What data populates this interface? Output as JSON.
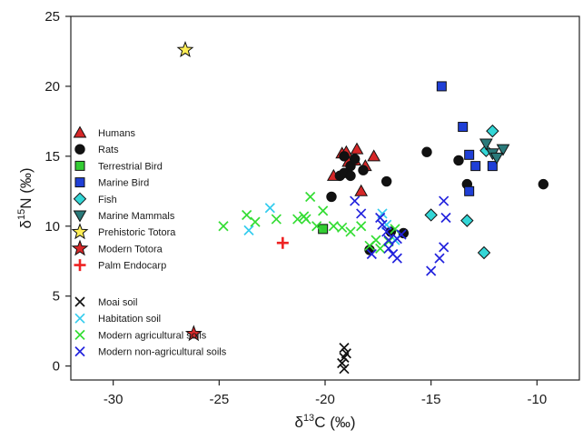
{
  "chart_data": {
    "type": "scatter",
    "xlabel": {
      "main": "δ",
      "sup": "13",
      "rest": "C (‰)"
    },
    "ylabel": {
      "main": "δ",
      "sup": "15",
      "rest": "N (‰)"
    },
    "xlim": [
      -32,
      -8
    ],
    "ylim": [
      -1,
      25
    ],
    "xticks": [
      -30,
      -25,
      -20,
      -15,
      -10
    ],
    "yticks": [
      0,
      5,
      10,
      15,
      20,
      25
    ],
    "xtick_labels": [
      "-30",
      "-25",
      "-20",
      "-15",
      "-10"
    ],
    "ytick_labels": [
      "0",
      "5",
      "10",
      "15",
      "20",
      "25"
    ],
    "grid": false,
    "legend_position": "left",
    "series": [
      {
        "name": "Humans",
        "marker": "triangle",
        "color": "#d62728",
        "points": [
          [
            -19.6,
            13.6
          ],
          [
            -19.2,
            15.2
          ],
          [
            -19.0,
            15.3
          ],
          [
            -18.9,
            14.6
          ],
          [
            -18.6,
            14.7
          ],
          [
            -18.5,
            15.5
          ],
          [
            -18.3,
            12.5
          ],
          [
            -18.1,
            14.3
          ],
          [
            -17.7,
            15.0
          ]
        ]
      },
      {
        "name": "Rats",
        "marker": "circle",
        "color": "#111111",
        "points": [
          [
            -19.7,
            12.1
          ],
          [
            -19.3,
            13.6
          ],
          [
            -19.1,
            13.8
          ],
          [
            -19.1,
            15.0
          ],
          [
            -18.8,
            13.6
          ],
          [
            -18.8,
            14.3
          ],
          [
            -18.6,
            14.8
          ],
          [
            -18.2,
            14.0
          ],
          [
            -17.1,
            13.2
          ],
          [
            -16.9,
            9.6
          ],
          [
            -17.9,
            8.3
          ],
          [
            -16.3,
            9.5
          ],
          [
            -15.2,
            15.3
          ],
          [
            -13.7,
            14.7
          ],
          [
            -13.3,
            13.0
          ],
          [
            -9.7,
            13.0
          ]
        ]
      },
      {
        "name": "Terrestrial Bird",
        "marker": "square",
        "color": "#33cc33",
        "points": [
          [
            -20.1,
            9.8
          ]
        ]
      },
      {
        "name": "Marine Bird",
        "marker": "square",
        "color": "#1f3fd6",
        "points": [
          [
            -14.5,
            20.0
          ],
          [
            -13.5,
            17.1
          ],
          [
            -13.2,
            15.1
          ],
          [
            -12.9,
            14.3
          ],
          [
            -13.2,
            12.5
          ],
          [
            -12.1,
            14.3
          ]
        ]
      },
      {
        "name": "Fish",
        "marker": "diamond",
        "color": "#33d6d6",
        "points": [
          [
            -15.0,
            10.8
          ],
          [
            -13.3,
            10.4
          ],
          [
            -12.1,
            16.8
          ],
          [
            -12.4,
            15.4
          ],
          [
            -12.5,
            8.1
          ]
        ]
      },
      {
        "name": "Marine Mammals",
        "marker": "triangle-down",
        "color": "#2a7a7a",
        "points": [
          [
            -12.4,
            15.9
          ],
          [
            -12.1,
            15.2
          ],
          [
            -11.6,
            15.5
          ],
          [
            -11.9,
            14.9
          ]
        ]
      },
      {
        "name": "Prehistoric Totora",
        "marker": "star",
        "color": "#ffee55",
        "points": [
          [
            -26.6,
            22.6
          ]
        ]
      },
      {
        "name": "Modern Totora",
        "marker": "star",
        "color": "#d62728",
        "points": [
          [
            -26.2,
            2.3
          ]
        ]
      },
      {
        "name": "Palm Endocarp",
        "marker": "plus",
        "color": "#ee2222",
        "points": [
          [
            -22.0,
            8.8
          ]
        ]
      },
      {
        "name": "Moai soil",
        "marker": "x",
        "color": "#111111",
        "points": [
          [
            -19.1,
            1.3
          ],
          [
            -19.0,
            0.9
          ],
          [
            -19.1,
            0.6
          ],
          [
            -19.2,
            0.2
          ],
          [
            -19.1,
            -0.2
          ]
        ]
      },
      {
        "name": "Habitation soil",
        "marker": "x",
        "color": "#33ccee",
        "points": [
          [
            -22.6,
            11.3
          ],
          [
            -23.6,
            9.7
          ],
          [
            -17.3,
            10.9
          ],
          [
            -17.1,
            10.1
          ],
          [
            -16.7,
            9.0
          ]
        ]
      },
      {
        "name": "Modern agricultural soils",
        "marker": "x",
        "color": "#33dd33",
        "points": [
          [
            -24.8,
            10.0
          ],
          [
            -23.7,
            10.8
          ],
          [
            -23.3,
            10.3
          ],
          [
            -22.3,
            10.5
          ],
          [
            -21.3,
            10.5
          ],
          [
            -21.0,
            10.7
          ],
          [
            -20.9,
            10.5
          ],
          [
            -20.7,
            12.1
          ],
          [
            -20.4,
            10.0
          ],
          [
            -20.1,
            11.1
          ],
          [
            -19.6,
            10.0
          ],
          [
            -19.2,
            9.9
          ],
          [
            -18.8,
            9.6
          ],
          [
            -18.3,
            10.0
          ],
          [
            -17.9,
            8.6
          ],
          [
            -17.6,
            9.0
          ],
          [
            -17.4,
            8.4
          ],
          [
            -17.0,
            8.9
          ],
          [
            -16.7,
            9.8
          ]
        ]
      },
      {
        "name": "Modern non-agricultural soils",
        "marker": "x",
        "color": "#2222dd",
        "points": [
          [
            -18.6,
            11.8
          ],
          [
            -18.3,
            10.9
          ],
          [
            -17.4,
            10.6
          ],
          [
            -17.3,
            10.1
          ],
          [
            -17.1,
            9.6
          ],
          [
            -17.0,
            9.0
          ],
          [
            -16.6,
            9.1
          ],
          [
            -16.4,
            9.4
          ],
          [
            -17.0,
            8.4
          ],
          [
            -16.8,
            8.0
          ],
          [
            -16.6,
            7.7
          ],
          [
            -17.8,
            8.0
          ],
          [
            -14.4,
            11.8
          ],
          [
            -14.3,
            10.6
          ],
          [
            -14.4,
            8.5
          ],
          [
            -14.6,
            7.7
          ],
          [
            -15.0,
            6.8
          ]
        ]
      }
    ]
  }
}
